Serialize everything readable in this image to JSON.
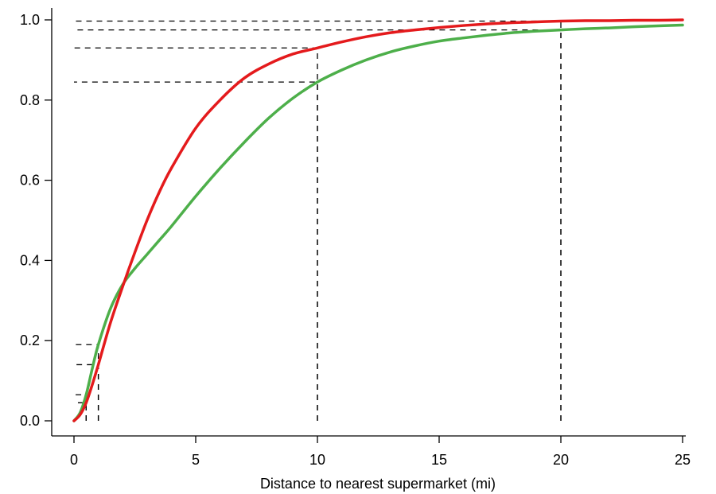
{
  "chart_data": {
    "type": "line",
    "title": "",
    "xlabel": "Distance to nearest supermarket (mi)",
    "ylabel": "",
    "xlim": [
      0,
      25
    ],
    "ylim": [
      0,
      1
    ],
    "x_ticks": [
      "0",
      "5",
      "10",
      "15",
      "20",
      "25"
    ],
    "y_ticks": [
      "0.0",
      "0.2",
      "0.4",
      "0.6",
      "0.8",
      "1.0"
    ],
    "grid": false,
    "legend": "none",
    "series": [
      {
        "color": "#e41a1c",
        "x": [
          0,
          0.25,
          0.5,
          0.75,
          1,
          1.5,
          2,
          2.5,
          3,
          3.5,
          4,
          5,
          6,
          7,
          8,
          9,
          10,
          11,
          12,
          13,
          14,
          15,
          16,
          17,
          18,
          19,
          20,
          21,
          22,
          23,
          24,
          25
        ],
        "y": [
          0.0,
          0.015,
          0.045,
          0.09,
          0.14,
          0.245,
          0.335,
          0.42,
          0.5,
          0.57,
          0.63,
          0.73,
          0.8,
          0.855,
          0.89,
          0.915,
          0.93,
          0.945,
          0.958,
          0.968,
          0.975,
          0.981,
          0.986,
          0.99,
          0.993,
          0.995,
          0.997,
          0.998,
          0.998,
          0.999,
          0.999,
          1.0
        ]
      },
      {
        "color": "#4daf4a",
        "x": [
          0,
          0.25,
          0.5,
          0.75,
          1,
          1.5,
          2,
          2.5,
          3,
          3.5,
          4,
          5,
          6,
          7,
          8,
          9,
          10,
          11,
          12,
          13,
          14,
          15,
          16,
          17,
          18,
          19,
          20,
          21,
          22,
          23,
          24,
          25
        ],
        "y": [
          0.0,
          0.02,
          0.065,
          0.13,
          0.19,
          0.28,
          0.34,
          0.38,
          0.415,
          0.45,
          0.485,
          0.56,
          0.63,
          0.695,
          0.755,
          0.805,
          0.845,
          0.875,
          0.9,
          0.92,
          0.935,
          0.947,
          0.955,
          0.962,
          0.968,
          0.972,
          0.975,
          0.978,
          0.98,
          0.983,
          0.985,
          0.987
        ]
      }
    ],
    "reference_lines": [
      {
        "x": 0.5,
        "y": 0.045
      },
      {
        "x": 0.5,
        "y": 0.065
      },
      {
        "x": 1,
        "y": 0.14
      },
      {
        "x": 1,
        "y": 0.19
      },
      {
        "x": 10,
        "y": 0.845
      },
      {
        "x": 10,
        "y": 0.93
      },
      {
        "x": 20,
        "y": 0.975
      },
      {
        "x": 20,
        "y": 0.997
      }
    ]
  }
}
